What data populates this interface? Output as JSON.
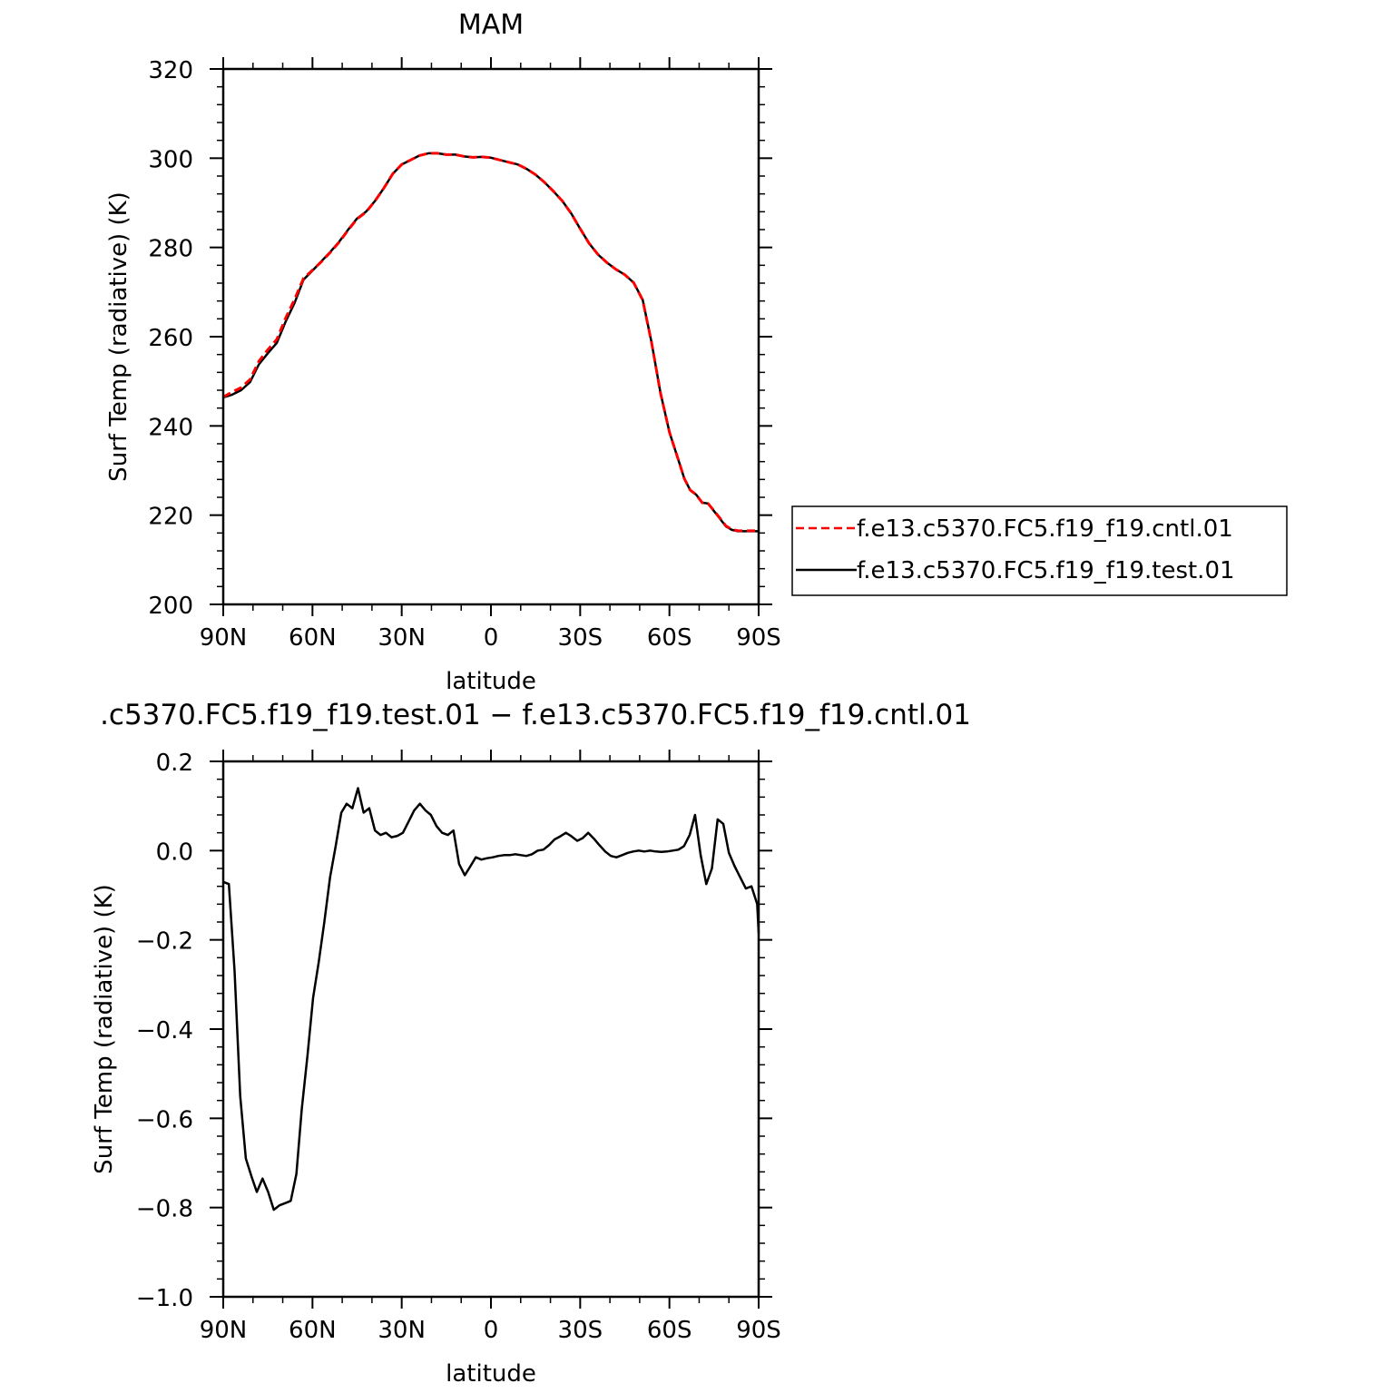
{
  "chart_data": [
    {
      "type": "line",
      "title": "MAM",
      "xlabel": "latitude",
      "ylabel": "Surf Temp (radiative) (K)",
      "xlim": [
        90,
        -90
      ],
      "ylim": [
        200,
        320
      ],
      "x_ticks": [
        {
          "value": 90,
          "label": "90N"
        },
        {
          "value": 60,
          "label": "60N"
        },
        {
          "value": 30,
          "label": "30N"
        },
        {
          "value": 0,
          "label": "0"
        },
        {
          "value": -30,
          "label": "30S"
        },
        {
          "value": -60,
          "label": "60S"
        },
        {
          "value": -90,
          "label": "90S"
        }
      ],
      "y_ticks": [
        {
          "value": 200,
          "label": "200"
        },
        {
          "value": 220,
          "label": "220"
        },
        {
          "value": 240,
          "label": "240"
        },
        {
          "value": 260,
          "label": "260"
        },
        {
          "value": 280,
          "label": "280"
        },
        {
          "value": 300,
          "label": "300"
        },
        {
          "value": 320,
          "label": "320"
        }
      ],
      "legend": "right",
      "series": [
        {
          "name": "f.e13.c5370.FC5.f19_f19.cntl.01",
          "color": "#ff0000",
          "dash": "dashed",
          "x": [
            90,
            87,
            84,
            81,
            78,
            75,
            72,
            69,
            66,
            63,
            60,
            57,
            54,
            51,
            48,
            45,
            42,
            39,
            36,
            33,
            30,
            27,
            24,
            21,
            18,
            15,
            12,
            9,
            6,
            3,
            0,
            -3,
            -6,
            -9,
            -12,
            -15,
            -18,
            -21,
            -24,
            -27,
            -30,
            -33,
            -36,
            -39,
            -42,
            -45,
            -48,
            -51,
            -54,
            -57,
            -60,
            -63,
            -65,
            -67,
            -69,
            -71,
            -73,
            -75,
            -77,
            -79,
            -81,
            -83,
            -85,
            -87,
            -89,
            -90
          ],
          "y": [
            246.5,
            247.6,
            248.6,
            250.4,
            254.5,
            257.1,
            259.4,
            264.2,
            268.4,
            273.1,
            274.9,
            276.8,
            278.9,
            281.2,
            283.9,
            286.4,
            287.9,
            290.4,
            293.3,
            296.5,
            298.6,
            299.6,
            300.6,
            301.1,
            301.1,
            300.8,
            300.8,
            300.4,
            300.2,
            300.3,
            300.1,
            299.6,
            299.1,
            298.6,
            297.6,
            296.3,
            294.6,
            292.6,
            290.4,
            287.6,
            284.2,
            280.9,
            278.4,
            276.6,
            275.1,
            273.9,
            272.1,
            268.2,
            258.7,
            247.4,
            238.6,
            232.4,
            228.2,
            225.6,
            224.6,
            222.8,
            222.6,
            221.0,
            219.3,
            217.6,
            216.8,
            216.5,
            216.5,
            216.5,
            216.5,
            216.5
          ]
        },
        {
          "name": "f.e13.c5370.FC5.f19_f19.test.01",
          "color": "#000000",
          "dash": "solid",
          "x": [
            90,
            87,
            84,
            81,
            78,
            75,
            72,
            69,
            66,
            63,
            60,
            57,
            54,
            51,
            48,
            45,
            42,
            39,
            36,
            33,
            30,
            27,
            24,
            21,
            18,
            15,
            12,
            9,
            6,
            3,
            0,
            -3,
            -6,
            -9,
            -12,
            -15,
            -18,
            -21,
            -24,
            -27,
            -30,
            -33,
            -36,
            -39,
            -42,
            -45,
            -48,
            -51,
            -54,
            -57,
            -60,
            -63,
            -65,
            -67,
            -69,
            -71,
            -73,
            -75,
            -77,
            -79,
            -81,
            -83,
            -85,
            -87,
            -89,
            -90
          ],
          "y": [
            246.4,
            247.0,
            248.0,
            249.8,
            253.8,
            256.3,
            258.6,
            263.4,
            267.6,
            272.8,
            274.8,
            276.9,
            279.0,
            281.3,
            284.0,
            286.5,
            288.0,
            290.4,
            293.3,
            296.5,
            298.6,
            299.6,
            300.6,
            301.1,
            301.1,
            300.8,
            300.8,
            300.4,
            300.2,
            300.3,
            300.1,
            299.6,
            299.1,
            298.6,
            297.6,
            296.3,
            294.6,
            292.6,
            290.4,
            287.6,
            284.2,
            280.9,
            278.4,
            276.6,
            275.1,
            273.9,
            272.1,
            268.3,
            258.7,
            247.4,
            238.6,
            232.4,
            228.2,
            225.6,
            224.6,
            222.8,
            222.6,
            220.9,
            219.2,
            217.5,
            216.7,
            216.4,
            216.4,
            216.4,
            216.4,
            216.4
          ]
        }
      ]
    },
    {
      "type": "line",
      "title": ".c5370.FC5.f19_f19.test.01 − f.e13.c5370.FC5.f19_f19.cntl.01",
      "xlabel": "latitude",
      "ylabel": "Surf Temp (radiative) (K)",
      "xlim": [
        90,
        -90
      ],
      "ylim": [
        -1.0,
        0.2
      ],
      "x_ticks": [
        {
          "value": 90,
          "label": "90N"
        },
        {
          "value": 60,
          "label": "60N"
        },
        {
          "value": 30,
          "label": "30N"
        },
        {
          "value": 0,
          "label": "0"
        },
        {
          "value": -30,
          "label": "30S"
        },
        {
          "value": -60,
          "label": "60S"
        },
        {
          "value": -90,
          "label": "90S"
        }
      ],
      "y_ticks": [
        {
          "value": -1.0,
          "label": "−1.0"
        },
        {
          "value": -0.8,
          "label": "−0.8"
        },
        {
          "value": -0.6,
          "label": "−0.6"
        },
        {
          "value": -0.4,
          "label": "−0.4"
        },
        {
          "value": -0.2,
          "label": "−0.2"
        },
        {
          "value": 0.0,
          "label": "0.0"
        },
        {
          "value": 0.2,
          "label": "0.2"
        }
      ],
      "series": [
        {
          "color": "#000000",
          "dash": "solid",
          "x": [
            90,
            88.1,
            86.2,
            84.3,
            82.4,
            80.5,
            78.7,
            76.8,
            74.9,
            73.0,
            71.1,
            69.2,
            67.3,
            65.4,
            63.6,
            61.7,
            59.8,
            57.9,
            56.0,
            54.1,
            52.2,
            50.3,
            48.5,
            46.6,
            44.7,
            42.8,
            40.9,
            39.0,
            37.1,
            35.3,
            33.4,
            31.5,
            29.6,
            27.7,
            25.8,
            23.9,
            22.0,
            20.2,
            18.3,
            16.4,
            14.5,
            12.6,
            10.7,
            8.8,
            6.9,
            5.1,
            3.2,
            1.3,
            -0.6,
            -2.5,
            -4.4,
            -6.3,
            -8.2,
            -10.1,
            -11.9,
            -13.8,
            -15.7,
            -17.6,
            -19.5,
            -21.4,
            -23.3,
            -25.2,
            -27.1,
            -29.0,
            -30.8,
            -32.7,
            -34.6,
            -36.5,
            -38.4,
            -40.3,
            -42.2,
            -44.1,
            -46.0,
            -47.8,
            -49.7,
            -51.6,
            -53.5,
            -55.4,
            -57.3,
            -59.2,
            -61.1,
            -63.0,
            -64.9,
            -66.8,
            -68.6,
            -70.5,
            -72.4,
            -74.3,
            -76.2,
            -78.1,
            -80.0,
            -81.9,
            -83.8,
            -85.7,
            -87.6,
            -89.5,
            -90
          ],
          "y": [
            -0.07,
            -0.075,
            -0.27,
            -0.55,
            -0.69,
            -0.73,
            -0.765,
            -0.735,
            -0.765,
            -0.805,
            -0.795,
            -0.79,
            -0.785,
            -0.725,
            -0.58,
            -0.46,
            -0.33,
            -0.25,
            -0.16,
            -0.06,
            0.01,
            0.085,
            0.105,
            0.095,
            0.14,
            0.085,
            0.095,
            0.045,
            0.035,
            0.04,
            0.03,
            0.033,
            0.04,
            0.065,
            0.09,
            0.105,
            0.09,
            0.08,
            0.055,
            0.04,
            0.035,
            0.045,
            -0.03,
            -0.055,
            -0.035,
            -0.015,
            -0.02,
            -0.017,
            -0.015,
            -0.012,
            -0.01,
            -0.01,
            -0.008,
            -0.01,
            -0.012,
            -0.008,
            0.0,
            0.002,
            0.012,
            0.025,
            0.032,
            0.04,
            0.032,
            0.022,
            0.028,
            0.04,
            0.027,
            0.012,
            -0.002,
            -0.012,
            -0.015,
            -0.01,
            -0.005,
            -0.002,
            0.0,
            -0.002,
            0.0,
            -0.002,
            -0.003,
            -0.002,
            0.0,
            0.002,
            0.01,
            0.035,
            0.08,
            -0.01,
            -0.075,
            -0.04,
            0.07,
            0.06,
            -0.005,
            -0.035,
            -0.06,
            -0.085,
            -0.08,
            -0.12,
            -0.185
          ]
        }
      ]
    }
  ]
}
